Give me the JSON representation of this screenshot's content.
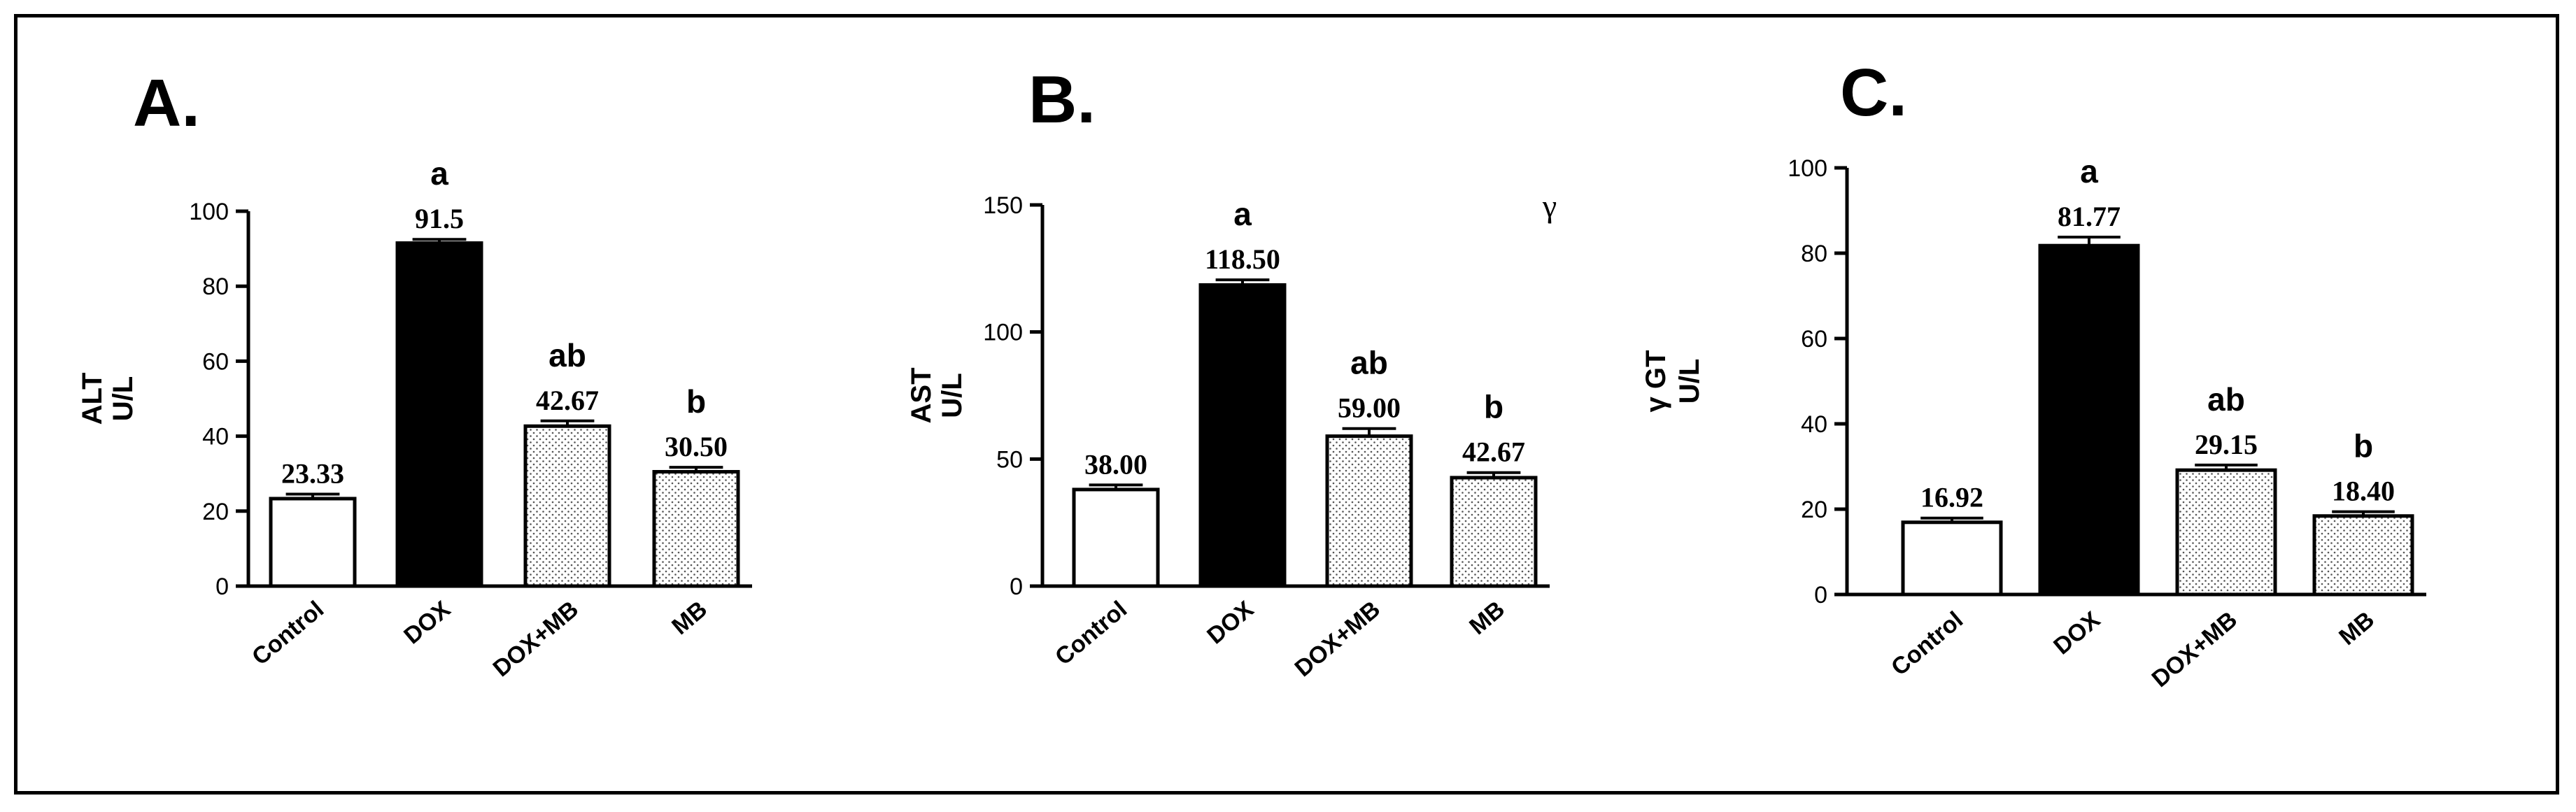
{
  "chart_data": [
    {
      "type": "bar",
      "panel_label": "A.",
      "ylabel_line1": "ALT",
      "ylabel_line2": "U/L",
      "categories": [
        "Control",
        "DOX",
        "DOX+MB",
        "MB"
      ],
      "values": [
        23.33,
        91.5,
        42.67,
        30.5
      ],
      "value_labels": [
        "23.33",
        "91.5",
        "42.67",
        "30.50"
      ],
      "errors": [
        1.2,
        1.0,
        1.4,
        1.2
      ],
      "significance": [
        "",
        "a",
        "ab",
        "b"
      ],
      "ylim": [
        0,
        100
      ],
      "yticks": [
        0,
        20,
        40,
        60,
        80,
        100
      ],
      "bar_fills": [
        "white",
        "black",
        "dotted",
        "dotted"
      ],
      "extra_label": ""
    },
    {
      "type": "bar",
      "panel_label": "B.",
      "ylabel_line1": "AST",
      "ylabel_line2": "U/L",
      "categories": [
        "Control",
        "DOX",
        "DOX+MB",
        "MB"
      ],
      "values": [
        38.0,
        118.5,
        59.0,
        42.67
      ],
      "value_labels": [
        "38.00",
        "118.50",
        "59.00",
        "42.67"
      ],
      "errors": [
        1.8,
        2.0,
        3.0,
        2.0
      ],
      "significance": [
        "",
        "a",
        "ab",
        "b"
      ],
      "ylim": [
        0,
        150
      ],
      "yticks": [
        0,
        50,
        100,
        150
      ],
      "bar_fills": [
        "white",
        "black",
        "dotted",
        "dotted"
      ],
      "extra_label": "γ"
    },
    {
      "type": "bar",
      "panel_label": "C.",
      "ylabel_line1": "γ GT",
      "ylabel_line2": "U/L",
      "categories": [
        "Control",
        "DOX",
        "DOX+MB",
        "MB"
      ],
      "values": [
        16.92,
        81.77,
        29.15,
        18.4
      ],
      "value_labels": [
        "16.92",
        "81.77",
        "29.15",
        "18.40"
      ],
      "errors": [
        1.0,
        2.0,
        1.2,
        1.0
      ],
      "significance": [
        "",
        "a",
        "ab",
        "b"
      ],
      "ylim": [
        0,
        100
      ],
      "yticks": [
        0,
        20,
        40,
        60,
        80,
        100
      ],
      "bar_fills": [
        "white",
        "black",
        "dotted",
        "dotted"
      ],
      "extra_label": ""
    }
  ]
}
